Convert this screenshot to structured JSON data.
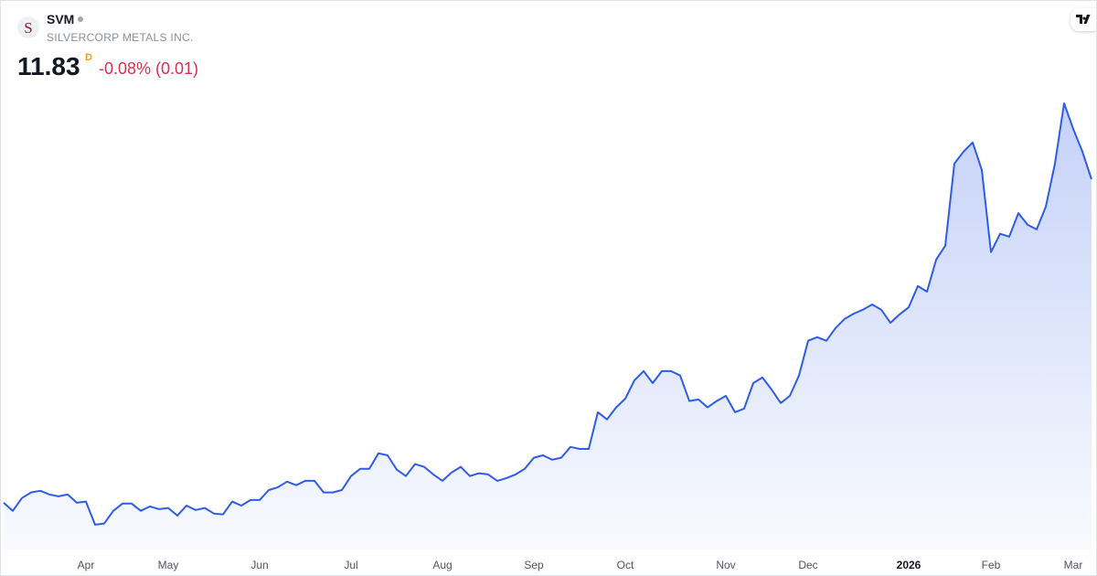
{
  "header": {
    "logo_letter": "S",
    "ticker": "SVM",
    "company": "SILVERCORP METALS INC.",
    "price": "11.83",
    "interval": "D",
    "change": "-0.08% (0.01)"
  },
  "chart_data": {
    "type": "area",
    "color": "#2e5ce6",
    "categories": [
      null,
      null,
      null,
      null,
      null,
      null,
      null,
      null,
      null,
      "Apr",
      null,
      null,
      null,
      null,
      null,
      null,
      null,
      null,
      "May",
      null,
      null,
      null,
      null,
      null,
      null,
      null,
      null,
      null,
      "Jun",
      null,
      null,
      null,
      null,
      null,
      null,
      null,
      null,
      null,
      "Jul",
      null,
      null,
      null,
      null,
      null,
      null,
      null,
      null,
      null,
      "Aug",
      null,
      null,
      null,
      null,
      null,
      null,
      null,
      null,
      null,
      "Sep",
      null,
      null,
      null,
      null,
      null,
      null,
      null,
      null,
      null,
      "Oct",
      null,
      null,
      null,
      null,
      null,
      null,
      null,
      null,
      null,
      null,
      "Nov",
      null,
      null,
      null,
      null,
      null,
      null,
      null,
      null,
      "Dec",
      null,
      null,
      null,
      null,
      null,
      null,
      null,
      null,
      null,
      null,
      "2026",
      null,
      null,
      null,
      null,
      null,
      null,
      null,
      null,
      "Feb",
      null,
      null,
      null,
      null,
      null,
      null,
      null,
      null,
      "Mar",
      null,
      null
    ],
    "values": [
      3.72,
      3.52,
      3.84,
      3.98,
      4.02,
      3.93,
      3.88,
      3.93,
      3.72,
      3.75,
      3.17,
      3.2,
      3.52,
      3.7,
      3.7,
      3.52,
      3.63,
      3.56,
      3.59,
      3.4,
      3.65,
      3.54,
      3.59,
      3.45,
      3.43,
      3.75,
      3.65,
      3.79,
      3.79,
      4.04,
      4.11,
      4.25,
      4.16,
      4.27,
      4.27,
      3.98,
      3.98,
      4.04,
      4.39,
      4.57,
      4.57,
      4.96,
      4.91,
      4.55,
      4.39,
      4.69,
      4.62,
      4.43,
      4.27,
      4.48,
      4.62,
      4.39,
      4.46,
      4.43,
      4.27,
      4.34,
      4.43,
      4.57,
      4.85,
      4.91,
      4.8,
      4.85,
      5.12,
      5.07,
      5.07,
      5.99,
      5.81,
      6.11,
      6.33,
      6.79,
      7.02,
      6.72,
      7.02,
      7.02,
      6.91,
      6.27,
      6.31,
      6.11,
      6.27,
      6.4,
      5.99,
      6.08,
      6.72,
      6.86,
      6.56,
      6.22,
      6.4,
      6.91,
      7.78,
      7.87,
      7.78,
      8.1,
      8.33,
      8.46,
      8.56,
      8.69,
      8.56,
      8.23,
      8.44,
      8.62,
      9.15,
      9.01,
      9.81,
      10.16,
      12.22,
      12.52,
      12.75,
      12.06,
      10.0,
      10.46,
      10.39,
      10.98,
      10.69,
      10.57,
      11.14,
      12.22,
      13.73,
      13.09,
      12.52,
      11.83
    ],
    "ylim": [
      2.55,
      14.12
    ]
  }
}
